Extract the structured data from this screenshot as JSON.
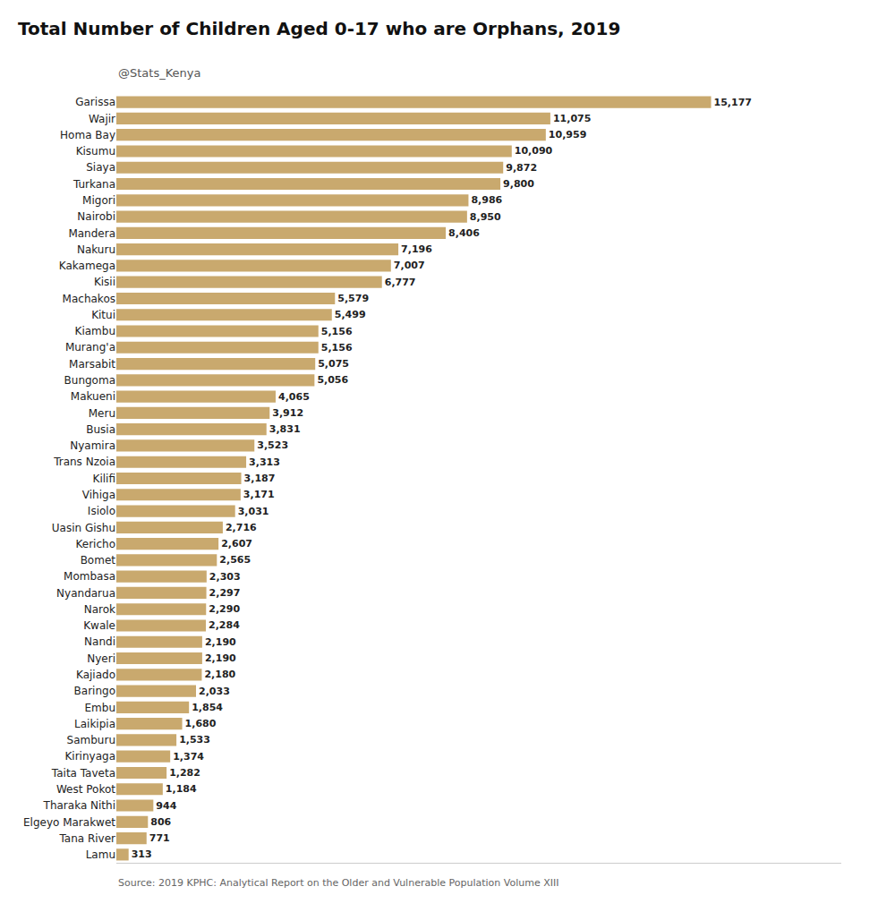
{
  "chart_data": {
    "type": "bar",
    "orientation": "horizontal",
    "title": "Total Number of Children Aged 0-17 who are Orphans, 2019",
    "subtitle": "@Stats_Kenya",
    "source": "Source: 2019 KPHC: Analytical Report on the Older and Vulnerable Population Volume XIII",
    "color": "#C9A96E",
    "categories": [
      "Garissa",
      "Wajir",
      "Homa Bay",
      "Kisumu",
      "Siaya",
      "Turkana",
      "Migori",
      "Nairobi",
      "Mandera",
      "Nakuru",
      "Kakamega",
      "Kisii",
      "Machakos",
      "Kitui",
      "Kiambu",
      "Murang'a",
      "Marsabit",
      "Bungoma",
      "Makueni",
      "Meru",
      "Busia",
      "Nyamira",
      "Trans Nzoia",
      "Kilifi",
      "Vihiga",
      "Isiolo",
      "Uasin Gishu",
      "Kericho",
      "Bomet",
      "Mombasa",
      "Nyandarua",
      "Narok",
      "Kwale",
      "Nandi",
      "Nyeri",
      "Kajiado",
      "Baringo",
      "Embu",
      "Laikipia",
      "Samburu",
      "Kirinyaga",
      "Taita Taveta",
      "West Pokot",
      "Tharaka Nithi",
      "Elgeyo Marakwet",
      "Tana River",
      "Lamu"
    ],
    "values": [
      15177,
      11075,
      10959,
      10090,
      9872,
      9800,
      8986,
      8950,
      8406,
      7196,
      7007,
      6777,
      5579,
      5499,
      5156,
      5156,
      5075,
      5056,
      4065,
      3912,
      3831,
      3523,
      3313,
      3187,
      3171,
      3031,
      2716,
      2607,
      2565,
      2303,
      2297,
      2290,
      2284,
      2190,
      2190,
      2180,
      2033,
      1854,
      1680,
      1533,
      1374,
      1282,
      1184,
      944,
      806,
      771,
      313
    ],
    "value_labels": [
      "15,177",
      "11,075",
      "10,959",
      "10,090",
      "9,872",
      "9,800",
      "8,986",
      "8,950",
      "8,406",
      "7,196",
      "7,007",
      "6,777",
      "5,579",
      "5,499",
      "5,156",
      "5,156",
      "5,075",
      "5,056",
      "4,065",
      "3,912",
      "3,831",
      "3,523",
      "3,313",
      "3,187",
      "3,171",
      "3,031",
      "2,716",
      "2,607",
      "2,565",
      "2,303",
      "2,297",
      "2,290",
      "2,284",
      "2,190",
      "2,190",
      "2,180",
      "2,033",
      "1,854",
      "1,680",
      "1,533",
      "1,374",
      "1,282",
      "1,184",
      "944",
      "806",
      "771",
      "313"
    ],
    "data_labels": true,
    "xlim": [
      0,
      18500
    ],
    "tick_labels": "y",
    "grid": false
  }
}
